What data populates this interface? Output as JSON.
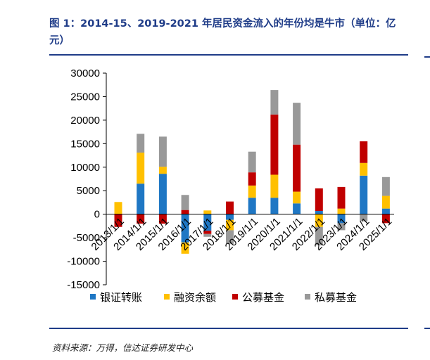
{
  "figure": {
    "title": "图 1：2014-15、2019-2021 年居民资金流入的年份均是牛市（单位：亿元）",
    "source": "资料来源：万得，信达证券研发中心"
  },
  "colors": {
    "title": "#1f3c88",
    "rule": "#1f3c88",
    "axis": "#000000"
  },
  "chart_data": {
    "type": "bar",
    "stacked": true,
    "categories": [
      "2013/1/1",
      "2014/1/1",
      "2015/1/1",
      "2016/1/1",
      "2017/1/1",
      "2018/1/1",
      "2019/1/1",
      "2020/1/1",
      "2021/1/1",
      "2022/1/1",
      "2023/1/1",
      "2024/1/1",
      "2025/1/1"
    ],
    "series": [
      {
        "name": "银证转账",
        "color": "#1f77c4",
        "values": [
          0,
          6500,
          8600,
          -6000,
          -3500,
          -1200,
          3500,
          3500,
          2300,
          700,
          -1900,
          8200,
          1200
        ]
      },
      {
        "name": "融资余额",
        "color": "#ffc000",
        "values": [
          2600,
          6600,
          1500,
          -2400,
          800,
          -2200,
          2600,
          4900,
          2500,
          -2700,
          1200,
          2700,
          2700
        ]
      },
      {
        "name": "公募基金",
        "color": "#c00000",
        "values": [
          -2700,
          -2000,
          -2000,
          900,
          -700,
          2700,
          2800,
          12800,
          10000,
          4800,
          4600,
          4600,
          -1900
        ]
      },
      {
        "name": "私募基金",
        "color": "#999999",
        "values": [
          0,
          4000,
          6400,
          3200,
          -600,
          -2900,
          4400,
          5200,
          8900,
          -3900,
          -1500,
          -1500,
          4000
        ]
      }
    ],
    "ylim": [
      -15000,
      30000
    ],
    "yticks": [
      -15000,
      -10000,
      -5000,
      0,
      5000,
      10000,
      15000,
      20000,
      25000,
      30000
    ],
    "xlabel": "",
    "ylabel": "",
    "grid": false,
    "legend_position": "bottom"
  }
}
